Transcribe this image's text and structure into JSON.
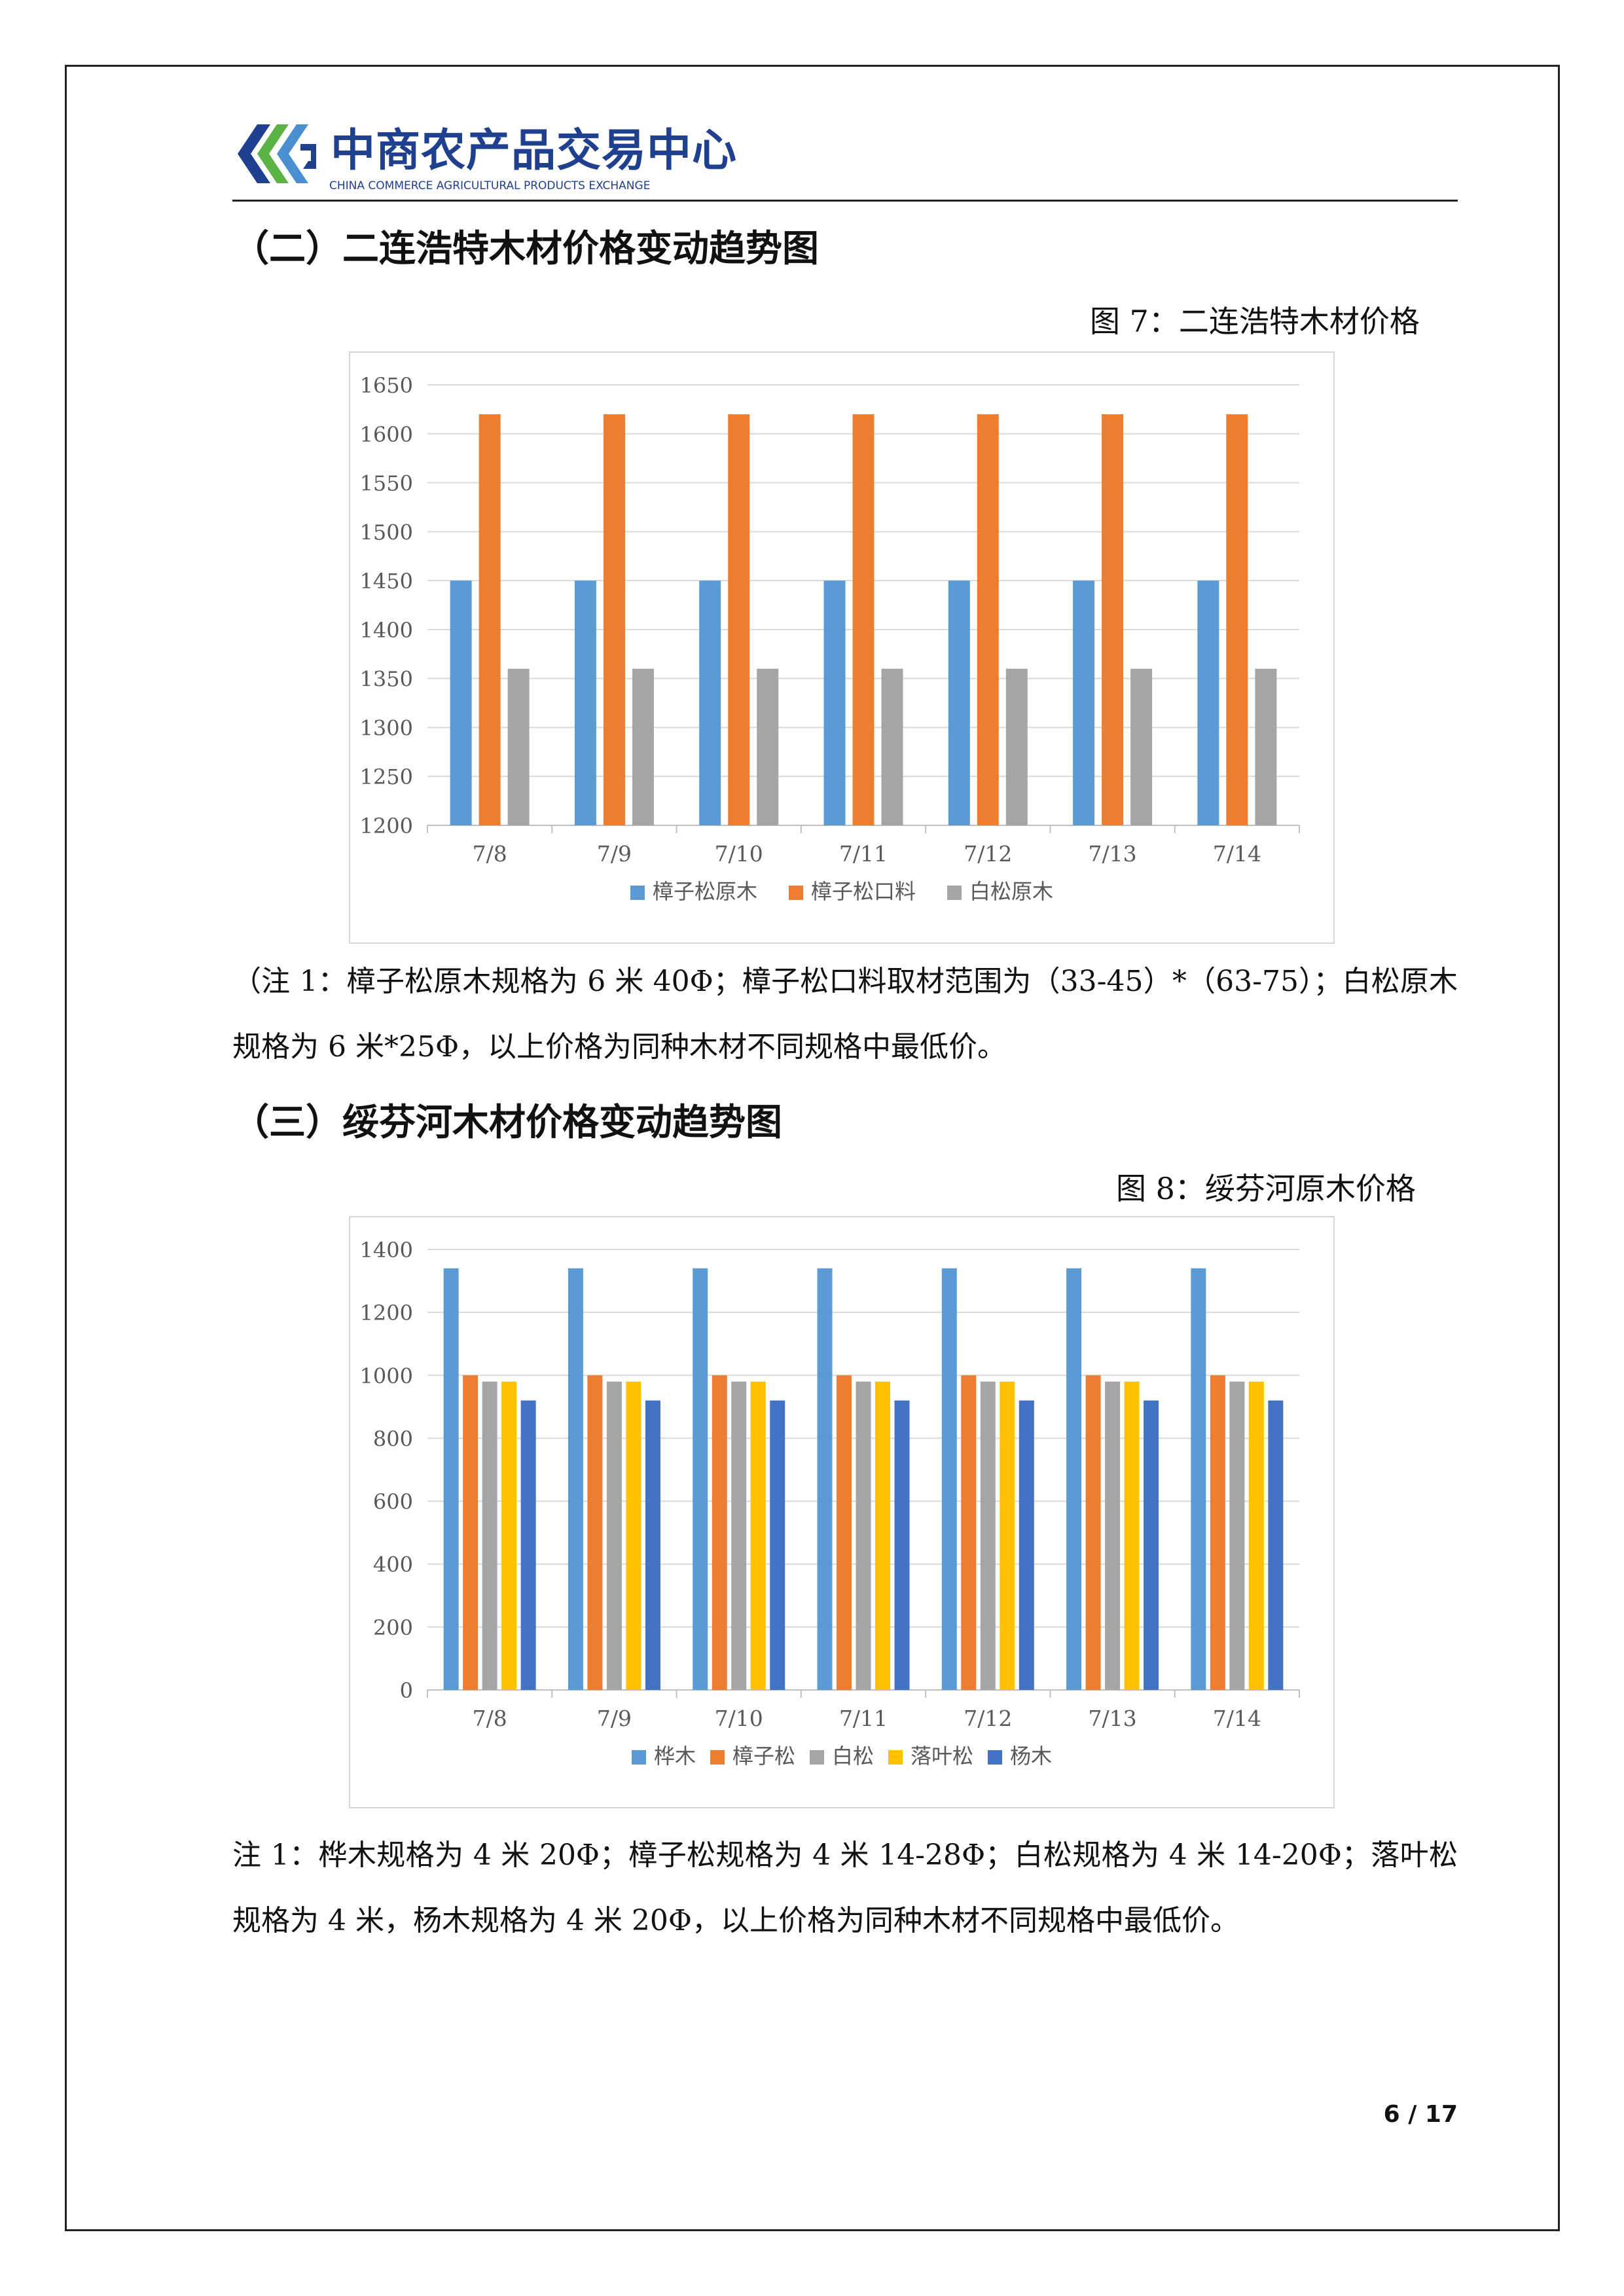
{
  "header": {
    "logo_name": "中商农产品交易中心",
    "logo_en": "CHINA COMMERCE AGRICULTURAL PRODUCTS EXCHANGE",
    "logo_colors": [
      "#1f3f8f",
      "#5ab443",
      "#4a8fd0"
    ]
  },
  "section2": {
    "title": "（二）二连浩特木材价格变动趋势图",
    "figure_caption": "图 7：二连浩特木材价格",
    "note": "（注 1：樟子松原木规格为 6 米 40Φ；樟子松口料取材范围为（33-45）*（63-75）；白松原木规格为 6 米*25Φ，以上价格为同种木材不同规格中最低价。"
  },
  "section3": {
    "title": "（三）绥芬河木材价格变动趋势图",
    "figure_caption": "图 8：绥芬河原木价格",
    "note": "注 1：桦木规格为 4 米 20Φ；樟子松规格为 4 米 14-28Φ；白松规格为 4 米 14-20Φ；落叶松规格为 4 米，杨木规格为 4 米 20Φ，以上价格为同种木材不同规格中最低价。"
  },
  "page_number": "6 / 17",
  "chart_data": [
    {
      "type": "bar",
      "categories": [
        "7/8",
        "7/9",
        "7/10",
        "7/11",
        "7/12",
        "7/13",
        "7/14"
      ],
      "ylim": [
        1200,
        1650
      ],
      "yticks": [
        1200,
        1250,
        1300,
        1350,
        1400,
        1450,
        1500,
        1550,
        1600,
        1650
      ],
      "grid": true,
      "legend_position": "bottom",
      "series": [
        {
          "name": "樟子松原木",
          "color": "#5b9bd5",
          "values": [
            1450,
            1450,
            1450,
            1450,
            1450,
            1450,
            1450
          ]
        },
        {
          "name": "樟子松口料",
          "color": "#ed7d31",
          "values": [
            1620,
            1620,
            1620,
            1620,
            1620,
            1620,
            1620
          ]
        },
        {
          "name": "白松原木",
          "color": "#a5a5a5",
          "values": [
            1360,
            1360,
            1360,
            1360,
            1360,
            1360,
            1360
          ]
        }
      ]
    },
    {
      "type": "bar",
      "categories": [
        "7/8",
        "7/9",
        "7/10",
        "7/11",
        "7/12",
        "7/13",
        "7/14"
      ],
      "ylim": [
        0,
        1400
      ],
      "yticks": [
        0,
        200,
        400,
        600,
        800,
        1000,
        1200,
        1400
      ],
      "grid": true,
      "legend_position": "bottom",
      "series": [
        {
          "name": "桦木",
          "color": "#5b9bd5",
          "values": [
            1340,
            1340,
            1340,
            1340,
            1340,
            1340,
            1340
          ]
        },
        {
          "name": "樟子松",
          "color": "#ed7d31",
          "values": [
            1000,
            1000,
            1000,
            1000,
            1000,
            1000,
            1000
          ]
        },
        {
          "name": "白松",
          "color": "#a5a5a5",
          "values": [
            980,
            980,
            980,
            980,
            980,
            980,
            980
          ]
        },
        {
          "name": "落叶松",
          "color": "#ffc000",
          "values": [
            980,
            980,
            980,
            980,
            980,
            980,
            980
          ]
        },
        {
          "name": "杨木",
          "color": "#4472c4",
          "values": [
            920,
            920,
            920,
            920,
            920,
            920,
            920
          ]
        }
      ]
    }
  ]
}
